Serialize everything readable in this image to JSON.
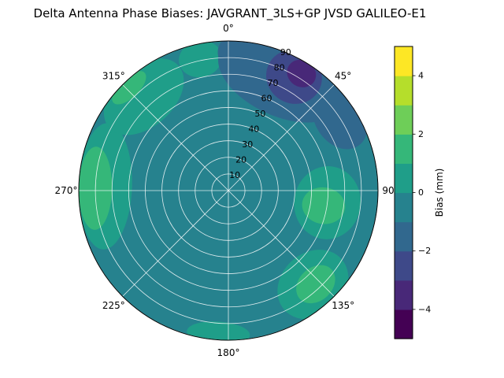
{
  "chart_data": {
    "type": "polar_contour",
    "title": "Delta Antenna Phase Biases: JAVGRANT_3LS+GP JVSD GALILEO-E1",
    "theta_zero": "top",
    "theta_direction": "clockwise",
    "theta_tick_labels": [
      "0°",
      "45°",
      "90°",
      "135°",
      "180°",
      "225°",
      "270°",
      "315°"
    ],
    "r_tick_labels": [
      "10",
      "20",
      "30",
      "40",
      "50",
      "60",
      "70",
      "80",
      "90"
    ],
    "r_max": 90,
    "r_label_angle_deg": 22.5,
    "grid": true,
    "grid_color": "rgba(255,255,255,0.85)",
    "base_color": "#26828e",
    "colorbar": {
      "label": "Bias (mm)",
      "tick_values": [
        -4,
        -2,
        0,
        2,
        4
      ],
      "tick_labels": [
        "−4",
        "−2",
        "0",
        "2",
        "4"
      ],
      "vmin": -5,
      "vmax": 5,
      "colormap": "viridis",
      "band_colors": [
        "#440154",
        "#482878",
        "#3e4989",
        "#31688e",
        "#26828e",
        "#1f9e89",
        "#35b779",
        "#6ece58",
        "#b5de2b",
        "#fde725"
      ]
    },
    "regions": [
      {
        "name": "green-mid-left",
        "color": "#1f9e89",
        "az": 272,
        "r": 74,
        "wt": 38,
        "wr": 16
      },
      {
        "name": "green-mid-topleft",
        "color": "#1f9e89",
        "az": 318,
        "r": 76,
        "wt": 28,
        "wr": 18
      },
      {
        "name": "green-mid-right",
        "color": "#1f9e89",
        "az": 97,
        "r": 60,
        "wt": 22,
        "wr": 20
      },
      {
        "name": "green-mid-bottomright",
        "color": "#1f9e89",
        "az": 138,
        "r": 76,
        "wt": 23,
        "wr": 19
      },
      {
        "name": "green-mid-top",
        "color": "#1f9e89",
        "az": 348,
        "r": 81,
        "wt": 13,
        "wr": 11
      },
      {
        "name": "green-mid-bottom",
        "color": "#1f9e89",
        "az": 184,
        "r": 86,
        "wt": 19,
        "wr": 7
      },
      {
        "name": "green-core-left",
        "color": "#35b779",
        "az": 271,
        "r": 80,
        "wt": 25,
        "wr": 10
      },
      {
        "name": "green-core-bottomright",
        "color": "#35b779",
        "az": 137,
        "r": 77,
        "wt": 13,
        "wr": 10
      },
      {
        "name": "green-core-right",
        "color": "#35b779",
        "az": 99,
        "r": 58,
        "wt": 11,
        "wr": 13
      },
      {
        "name": "green-core-topleft",
        "color": "#35b779",
        "az": 316,
        "r": 86,
        "wt": 13,
        "wr": 6
      },
      {
        "name": "blue-band-main",
        "color": "#31688e",
        "az": 25,
        "r": 74,
        "wt": 40,
        "wr": 22
      },
      {
        "name": "blue-band-left",
        "color": "#31688e",
        "az": 8,
        "r": 83,
        "wt": 18,
        "wr": 14
      },
      {
        "name": "blue-band-right",
        "color": "#31688e",
        "az": 57,
        "r": 80,
        "wt": 20,
        "wr": 15
      },
      {
        "name": "blue-dark-core",
        "color": "#3e4989",
        "az": 30,
        "r": 79,
        "wt": 17,
        "wr": 16
      },
      {
        "name": "blue-darkest-core",
        "color": "#482878",
        "az": 32,
        "r": 83,
        "wt": 9,
        "wr": 8
      }
    ],
    "samples": {
      "azimuth_deg": [
        0,
        45,
        90,
        135,
        180,
        225,
        270,
        315
      ],
      "zenith_deg": [
        0,
        30,
        60,
        90
      ],
      "bias_mm": [
        [
          -0.3,
          -0.4,
          -1.2,
          -1.6
        ],
        [
          -0.3,
          -0.5,
          -1.6,
          -2.6
        ],
        [
          -0.3,
          -0.2,
          0.8,
          0.4
        ],
        [
          -0.3,
          -0.2,
          0.6,
          1.4
        ],
        [
          -0.3,
          -0.3,
          -0.2,
          0.7
        ],
        [
          -0.3,
          -0.3,
          -0.4,
          -0.2
        ],
        [
          -0.3,
          -0.2,
          0.5,
          1.6
        ],
        [
          -0.3,
          -0.3,
          0.4,
          1.2
        ]
      ]
    }
  }
}
